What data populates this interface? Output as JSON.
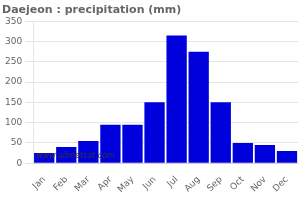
{
  "chart_data": {
    "type": "bar",
    "title": "Daejeon : precipitation (mm)",
    "categories": [
      "Jan",
      "Feb",
      "Mar",
      "Apr",
      "May",
      "Jun",
      "Jul",
      "Aug",
      "Sep",
      "Oct",
      "Nov",
      "Dec"
    ],
    "values": [
      25,
      40,
      55,
      95,
      95,
      150,
      315,
      275,
      150,
      50,
      45,
      30
    ],
    "color": "#0000DD",
    "ylim": [
      0,
      350
    ],
    "yticks": [
      0,
      50,
      100,
      150,
      200,
      250,
      300,
      350
    ],
    "grid": true,
    "annotations": [
      "www.allmetsat.com"
    ]
  }
}
